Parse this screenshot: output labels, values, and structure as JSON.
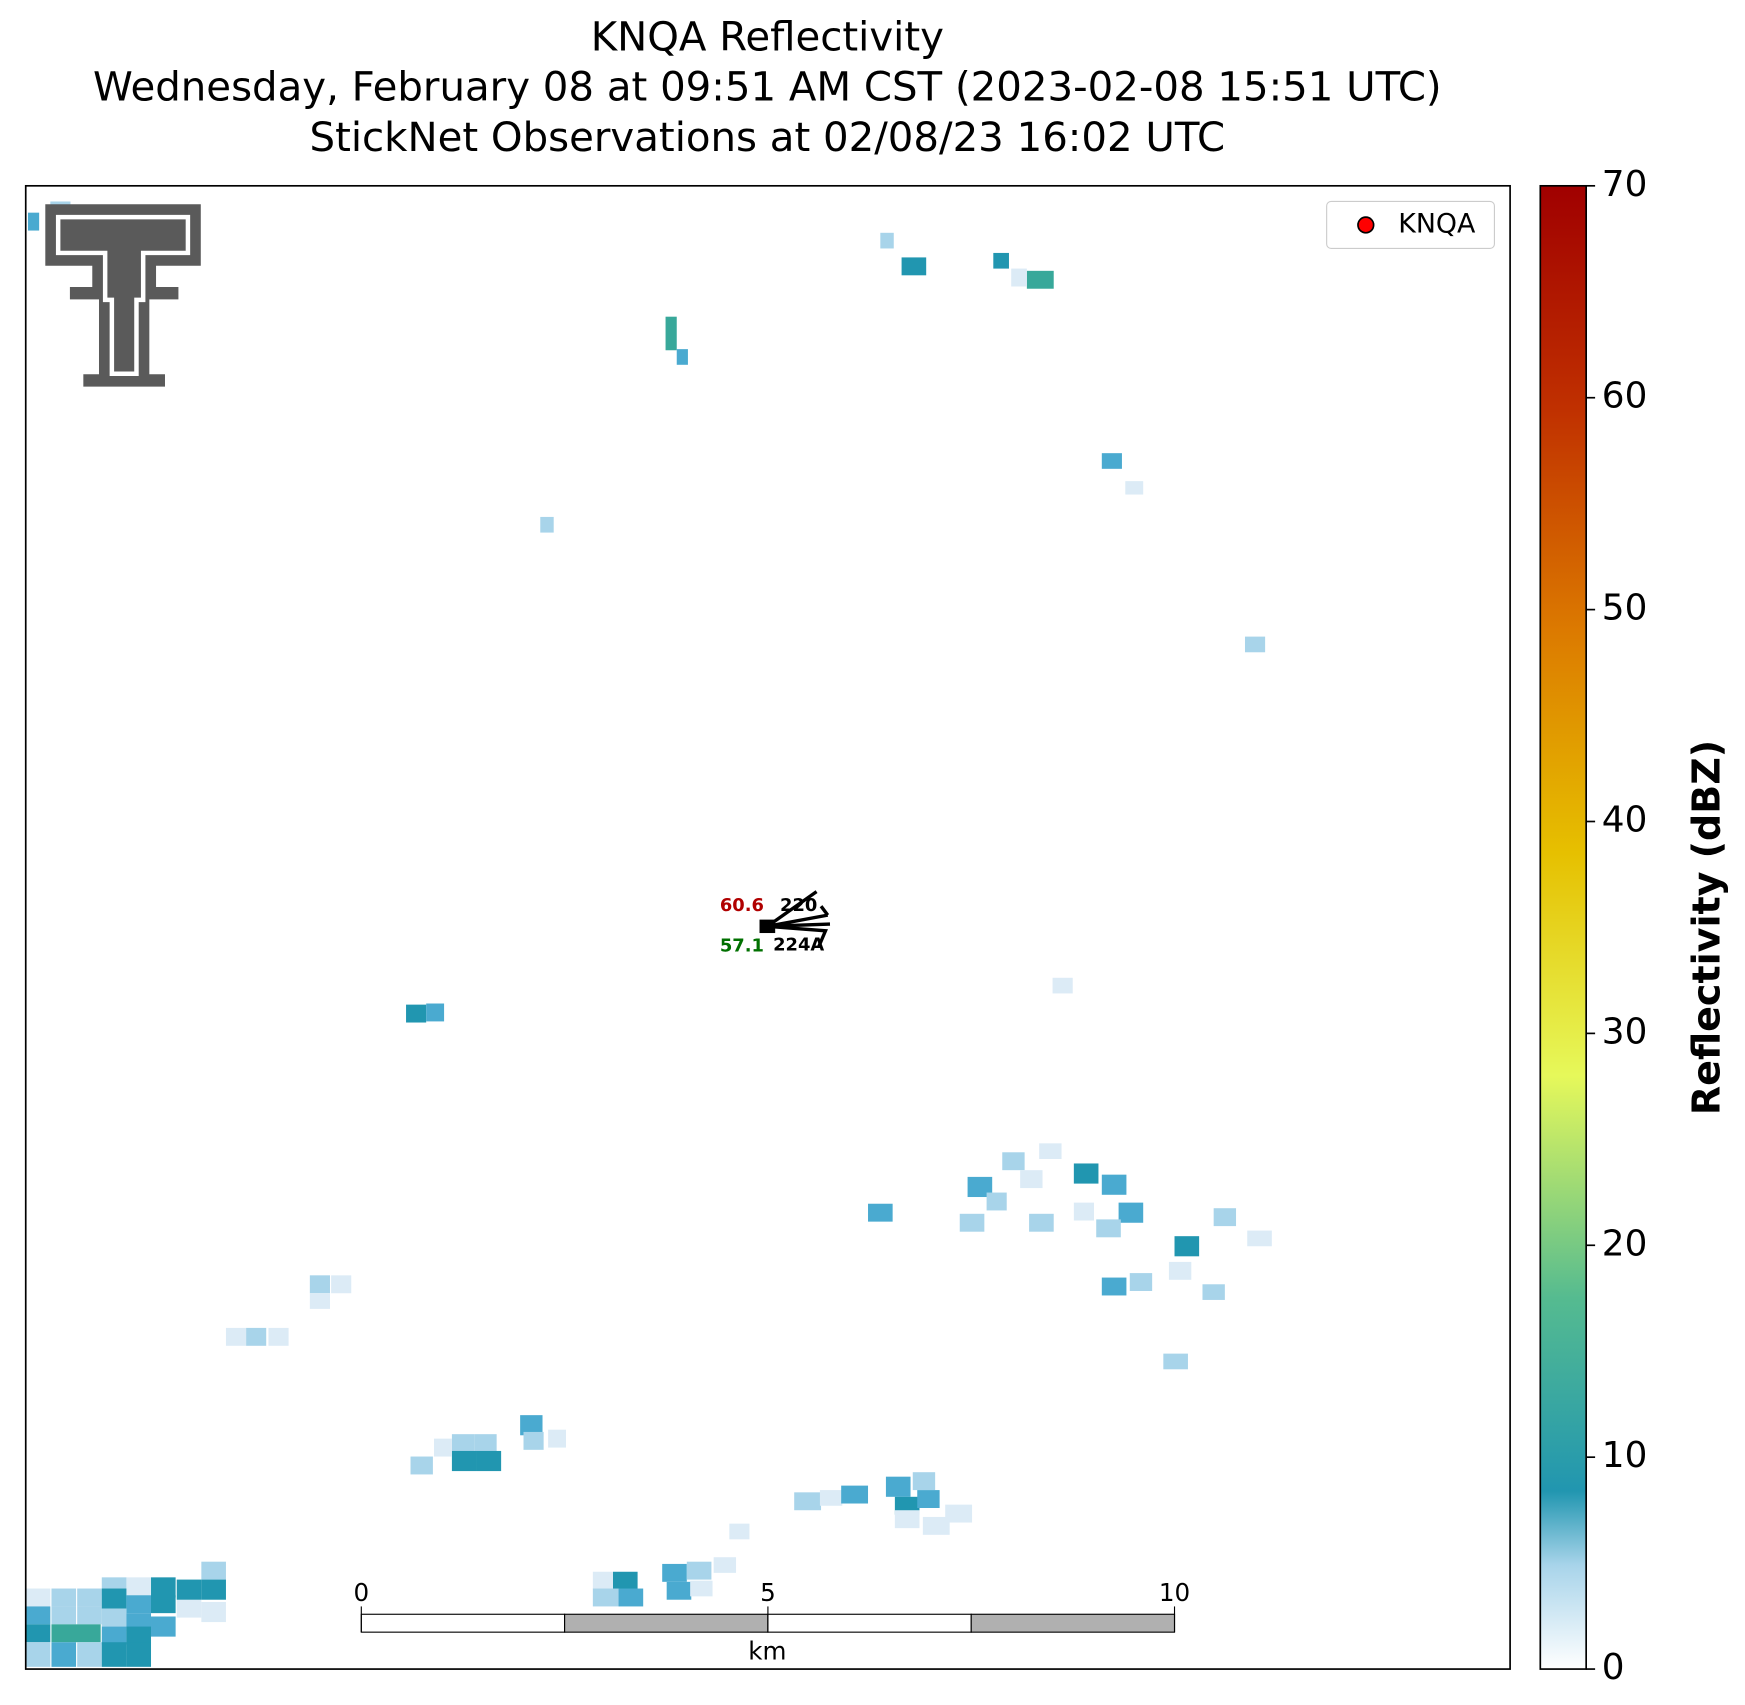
{
  "header": {
    "title": "KNQA Reflectivity",
    "subtitle": "Wednesday, February 08 at 09:51 AM CST (2023-02-08 15:51 UTC)",
    "observations": "StickNet Observations at 02/08/23 16:02 UTC"
  },
  "legend": {
    "label": "KNQA",
    "color": "#ff0000"
  },
  "colorbar": {
    "label": "Reflectivity (dBZ)",
    "lim": [
      0,
      70
    ],
    "ticks": [
      0,
      10,
      20,
      30,
      40,
      50,
      60,
      70
    ]
  },
  "scale_bar": {
    "lim": [
      0,
      10
    ],
    "ticks": [
      0,
      5,
      10
    ],
    "unit": "km"
  },
  "station": {
    "temperature": "60.6",
    "dewpoint": "57.1",
    "pressure": "220",
    "id": "224A"
  }
}
